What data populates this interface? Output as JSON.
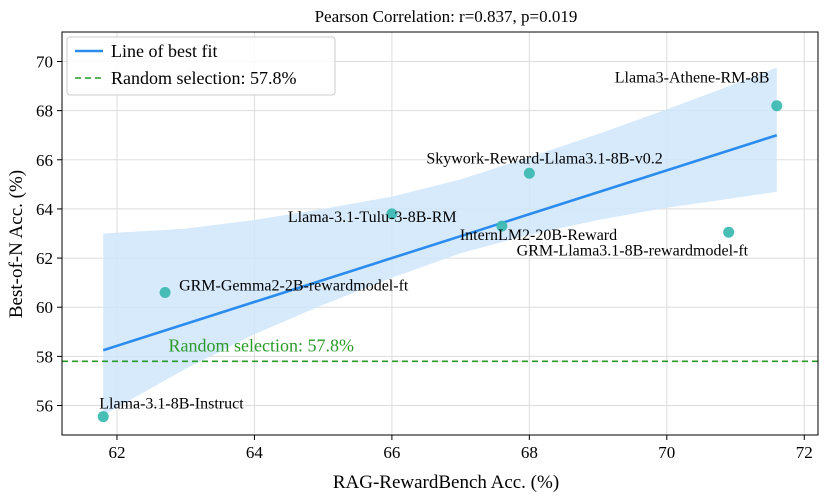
{
  "chart_data": {
    "type": "scatter",
    "title": "Pearson Correlation: r=0.837, p=0.019",
    "xlabel": "RAG-RewardBench Acc. (%)",
    "ylabel": "Best-of-N Acc. (%)",
    "xlim": [
      61.2,
      72.2
    ],
    "ylim": [
      54.8,
      71.2
    ],
    "xticks": [
      62,
      64,
      66,
      68,
      70,
      72
    ],
    "yticks": [
      56,
      58,
      60,
      62,
      64,
      66,
      68,
      70
    ],
    "xtick_labels": [
      "62",
      "64",
      "66",
      "68",
      "70",
      "72"
    ],
    "ytick_labels": [
      "56",
      "58",
      "60",
      "62",
      "64",
      "66",
      "68",
      "70"
    ],
    "grid": true,
    "legend_position": "top-left",
    "points": [
      {
        "label": "Llama-3.1-8B-Instruct",
        "x": 61.8,
        "y": 55.55
      },
      {
        "label": "GRM-Gemma2-2B-rewardmodel-ft",
        "x": 62.7,
        "y": 60.6
      },
      {
        "label": "Llama-3.1-Tulu-3-8B-RM",
        "x": 66.0,
        "y": 63.8
      },
      {
        "label": "InternLM2-20B-Reward",
        "x": 67.6,
        "y": 63.3
      },
      {
        "label": "Skywork-Reward-Llama3.1-8B-v0.2",
        "x": 68.0,
        "y": 65.45
      },
      {
        "label": "GRM-Llama3.1-8B-rewardmodel-ft",
        "x": 70.9,
        "y": 63.05
      },
      {
        "label": "Llama3-Athene-RM-8B",
        "x": 71.6,
        "y": 68.2
      }
    ],
    "fit_line": {
      "name": "Line of best fit",
      "x": [
        61.8,
        71.6
      ],
      "y": [
        58.25,
        67.0
      ]
    },
    "confidence_band": {
      "x": [
        61.8,
        63.0,
        64.0,
        65.0,
        66.0,
        67.0,
        68.0,
        69.0,
        70.0,
        71.0,
        71.6
      ],
      "upper": [
        63.0,
        63.2,
        63.55,
        64.0,
        64.5,
        65.2,
        66.1,
        67.05,
        68.05,
        69.1,
        69.75
      ],
      "lower": [
        55.6,
        57.5,
        58.9,
        60.1,
        61.2,
        62.2,
        62.95,
        63.55,
        64.05,
        64.45,
        64.7
      ]
    },
    "hline": {
      "name": "Random selection: 57.8%",
      "y": 57.8
    },
    "annotations": [
      {
        "text": "Random selection: 57.8%",
        "x": 62.75,
        "y": 58.2
      }
    ],
    "legend": [
      "Line of best fit",
      "Random selection: 57.8%"
    ],
    "colors": {
      "points": "#3dbab2",
      "fit_line": "#2b8cee",
      "band": "#cfe6fb",
      "hline": "#2a9a2a",
      "grid": "#dddddd"
    }
  }
}
